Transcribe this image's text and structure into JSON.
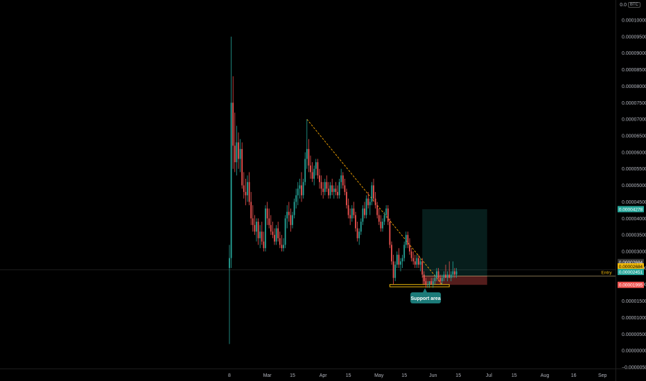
{
  "header": {
    "price_prefix": "0.0",
    "currency": "BTC"
  },
  "colors": {
    "background": "#000000",
    "up": "#26a69a",
    "down": "#ef5350",
    "trendline": "#f7a600",
    "support_box": "#f0b90b",
    "target_zone": "rgba(38,166,154,0.18)",
    "stop_zone": "rgba(239,83,80,0.35)",
    "label_bg": "#1b7a78"
  },
  "chart_data": {
    "type": "candlestick",
    "title": "",
    "xlabel": "",
    "ylabel": "",
    "ylim": [
      -5e-07,
      1.08e-05
    ],
    "y_ticks": [
      "0.00010000",
      "0.00009500",
      "0.00009000",
      "0.00008500",
      "0.00008000",
      "0.00007500",
      "0.00007000",
      "0.00006500",
      "0.00006000",
      "0.00005500",
      "0.00005000",
      "0.00004500",
      "0.00004000",
      "0.00003500",
      "0.00003000",
      "0.00002500",
      "0.00002000",
      "0.00001500",
      "0.00001000",
      "0.00000500",
      "0.00000000",
      "−0.00000500"
    ],
    "y_tick_values": [
      1e-05,
      9.5e-06,
      9e-06,
      8.5e-06,
      8e-06,
      7.5e-06,
      7e-06,
      6.5e-06,
      6e-06,
      5.5e-06,
      5e-06,
      4.5e-06,
      4e-06,
      3.5e-06,
      3e-06,
      2.5e-06,
      2e-06,
      1.5e-06,
      1e-06,
      5e-07,
      0.0,
      -5e-07
    ],
    "x_ticks": [
      "8",
      "Mar",
      "15",
      "Apr",
      "15",
      "May",
      "15",
      "Jun",
      "15",
      "Jul",
      "15",
      "Aug",
      "16",
      "Sep"
    ],
    "x_tick_days": [
      0,
      21,
      35,
      52,
      66,
      83,
      97,
      113,
      127,
      144,
      158,
      175,
      191,
      207
    ],
    "candles": [
      {
        "day": 0,
        "o": 2.5e-06,
        "h": 3.2e-06,
        "l": 2e-07,
        "c": 2.8e-06
      },
      {
        "day": 1,
        "o": 2.8e-06,
        "h": 9.5e-06,
        "l": 2.5e-06,
        "c": 7.5e-06
      },
      {
        "day": 2,
        "o": 7.5e-06,
        "h": 8.3e-06,
        "l": 5.5e-06,
        "c": 6.2e-06
      },
      {
        "day": 3,
        "o": 6.2e-06,
        "h": 7.2e-06,
        "l": 5.4e-06,
        "c": 5.7e-06
      },
      {
        "day": 4,
        "o": 5.7e-06,
        "h": 6.8e-06,
        "l": 5.3e-06,
        "c": 6.3e-06
      },
      {
        "day": 5,
        "o": 6.3e-06,
        "h": 6.6e-06,
        "l": 5.5e-06,
        "c": 5.8e-06
      },
      {
        "day": 6,
        "o": 5.8e-06,
        "h": 6.4e-06,
        "l": 5.4e-06,
        "c": 6.1e-06
      },
      {
        "day": 7,
        "o": 6.1e-06,
        "h": 6.3e-06,
        "l": 4.9e-06,
        "c": 5e-06
      },
      {
        "day": 8,
        "o": 5e-06,
        "h": 5.4e-06,
        "l": 4.6e-06,
        "c": 4.8e-06
      },
      {
        "day": 9,
        "o": 4.8e-06,
        "h": 5.2e-06,
        "l": 4.4e-06,
        "c": 4.7e-06
      },
      {
        "day": 10,
        "o": 4.7e-06,
        "h": 5.3e-06,
        "l": 4.5e-06,
        "c": 5.1e-06
      },
      {
        "day": 11,
        "o": 5.1e-06,
        "h": 5.4e-06,
        "l": 4.4e-06,
        "c": 4.5e-06
      },
      {
        "day": 12,
        "o": 4.5e-06,
        "h": 4.8e-06,
        "l": 3.8e-06,
        "c": 4e-06
      },
      {
        "day": 13,
        "o": 4e-06,
        "h": 4.4e-06,
        "l": 3.6e-06,
        "c": 3.8e-06
      },
      {
        "day": 14,
        "o": 3.8e-06,
        "h": 4.1e-06,
        "l": 3.5e-06,
        "c": 3.6e-06
      },
      {
        "day": 15,
        "o": 3.6e-06,
        "h": 4e-06,
        "l": 3.3e-06,
        "c": 3.9e-06
      },
      {
        "day": 16,
        "o": 3.9e-06,
        "h": 4e-06,
        "l": 3.2e-06,
        "c": 3.4e-06
      },
      {
        "day": 17,
        "o": 3.4e-06,
        "h": 3.8e-06,
        "l": 3.1e-06,
        "c": 3.6e-06
      },
      {
        "day": 18,
        "o": 3.6e-06,
        "h": 3.9e-06,
        "l": 3.2e-06,
        "c": 3.3e-06
      },
      {
        "day": 19,
        "o": 3.3e-06,
        "h": 3.6e-06,
        "l": 3e-06,
        "c": 3.1e-06
      },
      {
        "day": 20,
        "o": 3.1e-06,
        "h": 4.4e-06,
        "l": 3e-06,
        "c": 4.3e-06
      },
      {
        "day": 21,
        "o": 4.3e-06,
        "h": 4.5e-06,
        "l": 3.8e-06,
        "c": 4e-06
      },
      {
        "day": 22,
        "o": 4e-06,
        "h": 4.3e-06,
        "l": 3.7e-06,
        "c": 3.8e-06
      },
      {
        "day": 23,
        "o": 3.8e-06,
        "h": 4.1e-06,
        "l": 3.5e-06,
        "c": 3.6e-06
      },
      {
        "day": 24,
        "o": 3.6e-06,
        "h": 3.9e-06,
        "l": 3.4e-06,
        "c": 3.5e-06
      },
      {
        "day": 25,
        "o": 3.5e-06,
        "h": 3.7e-06,
        "l": 3.2e-06,
        "c": 3.3e-06
      },
      {
        "day": 26,
        "o": 3.3e-06,
        "h": 3.8e-06,
        "l": 3.2e-06,
        "c": 3.7e-06
      },
      {
        "day": 27,
        "o": 3.7e-06,
        "h": 3.9e-06,
        "l": 3.3e-06,
        "c": 3.4e-06
      },
      {
        "day": 28,
        "o": 3.4e-06,
        "h": 3.6e-06,
        "l": 3.1e-06,
        "c": 3.2e-06
      },
      {
        "day": 29,
        "o": 3.2e-06,
        "h": 3.5e-06,
        "l": 3e-06,
        "c": 3.1e-06
      },
      {
        "day": 30,
        "o": 3.1e-06,
        "h": 3.4e-06,
        "l": 3e-06,
        "c": 3.2e-06
      },
      {
        "day": 31,
        "o": 3.2e-06,
        "h": 4.1e-06,
        "l": 3.1e-06,
        "c": 4e-06
      },
      {
        "day": 32,
        "o": 4e-06,
        "h": 4.4e-06,
        "l": 3.7e-06,
        "c": 4.2e-06
      },
      {
        "day": 33,
        "o": 4.2e-06,
        "h": 4.5e-06,
        "l": 3.9e-06,
        "c": 4.1e-06
      },
      {
        "day": 34,
        "o": 4.1e-06,
        "h": 4.3e-06,
        "l": 3.6e-06,
        "c": 3.8e-06
      },
      {
        "day": 35,
        "o": 3.8e-06,
        "h": 4.2e-06,
        "l": 3.7e-06,
        "c": 4.1e-06
      },
      {
        "day": 36,
        "o": 4.1e-06,
        "h": 4.6e-06,
        "l": 4e-06,
        "c": 4.5e-06
      },
      {
        "day": 37,
        "o": 4.5e-06,
        "h": 4.9e-06,
        "l": 4.3e-06,
        "c": 4.7e-06
      },
      {
        "day": 38,
        "o": 4.7e-06,
        "h": 5.1e-06,
        "l": 4.4e-06,
        "c": 4.9e-06
      },
      {
        "day": 39,
        "o": 4.9e-06,
        "h": 5.2e-06,
        "l": 4.6e-06,
        "c": 5e-06
      },
      {
        "day": 40,
        "o": 5e-06,
        "h": 5.4e-06,
        "l": 4.5e-06,
        "c": 4.7e-06
      },
      {
        "day": 41,
        "o": 4.7e-06,
        "h": 5.2e-06,
        "l": 4.6e-06,
        "c": 5.1e-06
      },
      {
        "day": 42,
        "o": 5.1e-06,
        "h": 6e-06,
        "l": 5e-06,
        "c": 5.8e-06
      },
      {
        "day": 43,
        "o": 5.8e-06,
        "h": 7e-06,
        "l": 5.5e-06,
        "c": 6.1e-06
      },
      {
        "day": 44,
        "o": 6.1e-06,
        "h": 6.4e-06,
        "l": 5.4e-06,
        "c": 5.6e-06
      },
      {
        "day": 45,
        "o": 5.6e-06,
        "h": 5.9e-06,
        "l": 5.2e-06,
        "c": 5.4e-06
      },
      {
        "day": 46,
        "o": 5.4e-06,
        "h": 5.7e-06,
        "l": 5.1e-06,
        "c": 5.2e-06
      },
      {
        "day": 47,
        "o": 5.2e-06,
        "h": 5.6e-06,
        "l": 5e-06,
        "c": 5.5e-06
      },
      {
        "day": 48,
        "o": 5.5e-06,
        "h": 5.8e-06,
        "l": 5.3e-06,
        "c": 5.7e-06
      },
      {
        "day": 49,
        "o": 5.7e-06,
        "h": 5.8e-06,
        "l": 5.2e-06,
        "c": 5.3e-06
      },
      {
        "day": 50,
        "o": 5.3e-06,
        "h": 5.5e-06,
        "l": 4.9e-06,
        "c": 5.1e-06
      },
      {
        "day": 51,
        "o": 5.1e-06,
        "h": 5.3e-06,
        "l": 4.7e-06,
        "c": 4.9e-06
      },
      {
        "day": 52,
        "o": 4.9e-06,
        "h": 5.1e-06,
        "l": 4.6e-06,
        "c": 4.8e-06
      },
      {
        "day": 53,
        "o": 4.8e-06,
        "h": 5.2e-06,
        "l": 4.7e-06,
        "c": 5.1e-06
      },
      {
        "day": 54,
        "o": 5.1e-06,
        "h": 5.3e-06,
        "l": 4.8e-06,
        "c": 4.9e-06
      },
      {
        "day": 55,
        "o": 4.9e-06,
        "h": 5.1e-06,
        "l": 4.6e-06,
        "c": 4.7e-06
      },
      {
        "day": 56,
        "o": 4.7e-06,
        "h": 5.1e-06,
        "l": 4.6e-06,
        "c": 5e-06
      },
      {
        "day": 57,
        "o": 5e-06,
        "h": 5.2e-06,
        "l": 4.7e-06,
        "c": 4.8e-06
      },
      {
        "day": 58,
        "o": 4.8e-06,
        "h": 5e-06,
        "l": 4.6e-06,
        "c": 4.9e-06
      },
      {
        "day": 59,
        "o": 4.9e-06,
        "h": 5.1e-06,
        "l": 4.7e-06,
        "c": 4.8e-06
      },
      {
        "day": 60,
        "o": 4.8e-06,
        "h": 5e-06,
        "l": 4.6e-06,
        "c": 4.7e-06
      },
      {
        "day": 61,
        "o": 4.7e-06,
        "h": 5.2e-06,
        "l": 4.6e-06,
        "c": 5.1e-06
      },
      {
        "day": 62,
        "o": 5.1e-06,
        "h": 5.5e-06,
        "l": 4.9e-06,
        "c": 5.3e-06
      },
      {
        "day": 63,
        "o": 5.3e-06,
        "h": 5.4e-06,
        "l": 4.9e-06,
        "c": 5e-06
      },
      {
        "day": 64,
        "o": 5e-06,
        "h": 5.2e-06,
        "l": 4.7e-06,
        "c": 4.8e-06
      },
      {
        "day": 65,
        "o": 4.8e-06,
        "h": 4.9e-06,
        "l": 4.3e-06,
        "c": 4.4e-06
      },
      {
        "day": 66,
        "o": 4.4e-06,
        "h": 4.6e-06,
        "l": 4e-06,
        "c": 4.1e-06
      },
      {
        "day": 67,
        "o": 4.1e-06,
        "h": 4.3e-06,
        "l": 3.8e-06,
        "c": 4e-06
      },
      {
        "day": 68,
        "o": 4e-06,
        "h": 4.4e-06,
        "l": 3.9e-06,
        "c": 4.3e-06
      },
      {
        "day": 69,
        "o": 4.3e-06,
        "h": 4.5e-06,
        "l": 4e-06,
        "c": 4.1e-06
      },
      {
        "day": 70,
        "o": 4.1e-06,
        "h": 4.2e-06,
        "l": 3.6e-06,
        "c": 3.7e-06
      },
      {
        "day": 71,
        "o": 3.7e-06,
        "h": 3.9e-06,
        "l": 3.3e-06,
        "c": 3.4e-06
      },
      {
        "day": 72,
        "o": 3.4e-06,
        "h": 3.7e-06,
        "l": 3.2e-06,
        "c": 3.6e-06
      },
      {
        "day": 73,
        "o": 3.6e-06,
        "h": 4e-06,
        "l": 3.5e-06,
        "c": 3.9e-06
      },
      {
        "day": 74,
        "o": 3.9e-06,
        "h": 4.4e-06,
        "l": 3.8e-06,
        "c": 4.3e-06
      },
      {
        "day": 75,
        "o": 4.3e-06,
        "h": 4.5e-06,
        "l": 4e-06,
        "c": 4.1e-06
      },
      {
        "day": 76,
        "o": 4.1e-06,
        "h": 4.7e-06,
        "l": 4e-06,
        "c": 4.6e-06
      },
      {
        "day": 77,
        "o": 4.6e-06,
        "h": 4.8e-06,
        "l": 4.3e-06,
        "c": 4.4e-06
      },
      {
        "day": 78,
        "o": 4.4e-06,
        "h": 4.6e-06,
        "l": 4.1e-06,
        "c": 4.5e-06
      },
      {
        "day": 79,
        "o": 4.5e-06,
        "h": 5.1e-06,
        "l": 4.4e-06,
        "c": 5e-06
      },
      {
        "day": 80,
        "o": 5e-06,
        "h": 5.2e-06,
        "l": 4.5e-06,
        "c": 4.6e-06
      },
      {
        "day": 81,
        "o": 4.6e-06,
        "h": 4.8e-06,
        "l": 4.3e-06,
        "c": 4.4e-06
      },
      {
        "day": 82,
        "o": 4.4e-06,
        "h": 4.5e-06,
        "l": 4e-06,
        "c": 4.1e-06
      },
      {
        "day": 83,
        "o": 4.1e-06,
        "h": 4.3e-06,
        "l": 3.8e-06,
        "c": 3.9e-06
      },
      {
        "day": 84,
        "o": 3.9e-06,
        "h": 4.1e-06,
        "l": 3.6e-06,
        "c": 3.7e-06
      },
      {
        "day": 85,
        "o": 3.7e-06,
        "h": 4e-06,
        "l": 3.6e-06,
        "c": 3.9e-06
      },
      {
        "day": 86,
        "o": 3.9e-06,
        "h": 4.2e-06,
        "l": 3.8e-06,
        "c": 4.1e-06
      },
      {
        "day": 87,
        "o": 4.1e-06,
        "h": 4.4e-06,
        "l": 4e-06,
        "c": 4.3e-06
      },
      {
        "day": 88,
        "o": 4.3e-06,
        "h": 4.4e-06,
        "l": 3.8e-06,
        "c": 3.9e-06
      },
      {
        "day": 89,
        "o": 3.9e-06,
        "h": 4e-06,
        "l": 3.1e-06,
        "c": 3.2e-06
      },
      {
        "day": 90,
        "o": 3.2e-06,
        "h": 3.3e-06,
        "l": 2.6e-06,
        "c": 2.7e-06
      },
      {
        "day": 91,
        "o": 2.7e-06,
        "h": 2.9e-06,
        "l": 2e-06,
        "c": 2.2e-06
      },
      {
        "day": 92,
        "o": 2.2e-06,
        "h": 2.7e-06,
        "l": 2.1e-06,
        "c": 2.6e-06
      },
      {
        "day": 93,
        "o": 2.6e-06,
        "h": 3e-06,
        "l": 2.5e-06,
        "c": 2.9e-06
      },
      {
        "day": 94,
        "o": 2.9e-06,
        "h": 3.1e-06,
        "l": 2.5e-06,
        "c": 2.6e-06
      },
      {
        "day": 95,
        "o": 2.6e-06,
        "h": 2.8e-06,
        "l": 2.4e-06,
        "c": 2.7e-06
      },
      {
        "day": 96,
        "o": 2.7e-06,
        "h": 2.9e-06,
        "l": 2.5e-06,
        "c": 2.8e-06
      },
      {
        "day": 97,
        "o": 2.8e-06,
        "h": 3.3e-06,
        "l": 2.7e-06,
        "c": 3.2e-06
      },
      {
        "day": 98,
        "o": 3.2e-06,
        "h": 3.6e-06,
        "l": 3.1e-06,
        "c": 3.5e-06
      },
      {
        "day": 99,
        "o": 3.5e-06,
        "h": 3.6e-06,
        "l": 3.1e-06,
        "c": 3.2e-06
      },
      {
        "day": 100,
        "o": 3.2e-06,
        "h": 3.4e-06,
        "l": 2.9e-06,
        "c": 3e-06
      },
      {
        "day": 101,
        "o": 3e-06,
        "h": 3.1e-06,
        "l": 2.7e-06,
        "c": 2.8e-06
      },
      {
        "day": 102,
        "o": 2.8e-06,
        "h": 3e-06,
        "l": 2.6e-06,
        "c": 2.7e-06
      },
      {
        "day": 103,
        "o": 2.7e-06,
        "h": 2.9e-06,
        "l": 2.5e-06,
        "c": 2.6e-06
      },
      {
        "day": 104,
        "o": 2.6e-06,
        "h": 2.9e-06,
        "l": 2.5e-06,
        "c": 2.8e-06
      },
      {
        "day": 105,
        "o": 2.8e-06,
        "h": 2.9e-06,
        "l": 2.5e-06,
        "c": 2.6e-06
      },
      {
        "day": 106,
        "o": 2.6e-06,
        "h": 2.8e-06,
        "l": 2.4e-06,
        "c": 2.7e-06
      },
      {
        "day": 107,
        "o": 2.7e-06,
        "h": 2.8e-06,
        "l": 2.2e-06,
        "c": 2.3e-06
      },
      {
        "day": 108,
        "o": 2.3e-06,
        "h": 2.4e-06,
        "l": 2e-06,
        "c": 2.1e-06
      },
      {
        "day": 109,
        "o": 2.1e-06,
        "h": 2.2e-06,
        "l": 1.9e-06,
        "c": 2e-06
      },
      {
        "day": 110,
        "o": 2e-06,
        "h": 2.1e-06,
        "l": 1.9e-06,
        "c": 2e-06
      },
      {
        "day": 111,
        "o": 2e-06,
        "h": 2.1e-06,
        "l": 1.9e-06,
        "c": 2.1e-06
      },
      {
        "day": 112,
        "o": 2.1e-06,
        "h": 2.2e-06,
        "l": 2e-06,
        "c": 2e-06
      },
      {
        "day": 113,
        "o": 2e-06,
        "h": 2.2e-06,
        "l": 1.9e-06,
        "c": 2.1e-06
      },
      {
        "day": 114,
        "o": 2.1e-06,
        "h": 2.3e-06,
        "l": 2e-06,
        "c": 2.2e-06
      },
      {
        "day": 115,
        "o": 2.2e-06,
        "h": 2.5e-06,
        "l": 2.1e-06,
        "c": 2.4e-06
      },
      {
        "day": 116,
        "o": 2.4e-06,
        "h": 2.5e-06,
        "l": 2.1e-06,
        "c": 2.2e-06
      },
      {
        "day": 117,
        "o": 2.2e-06,
        "h": 2.3e-06,
        "l": 2e-06,
        "c": 2.1e-06
      },
      {
        "day": 118,
        "o": 2.1e-06,
        "h": 2.3e-06,
        "l": 2e-06,
        "c": 2.2e-06
      },
      {
        "day": 119,
        "o": 2.2e-06,
        "h": 2.4e-06,
        "l": 2.1e-06,
        "c": 2.3e-06
      },
      {
        "day": 120,
        "o": 2.3e-06,
        "h": 2.6e-06,
        "l": 2.2e-06,
        "c": 2.2e-06
      },
      {
        "day": 121,
        "o": 2.2e-06,
        "h": 2.4e-06,
        "l": 2.1e-06,
        "c": 2.3e-06
      },
      {
        "day": 122,
        "o": 2.3e-06,
        "h": 2.7e-06,
        "l": 2.2e-06,
        "c": 2.2e-06
      },
      {
        "day": 123,
        "o": 2.2e-06,
        "h": 2.4e-06,
        "l": 2.1e-06,
        "c": 2.3e-06
      },
      {
        "day": 124,
        "o": 2.3e-06,
        "h": 2.7e-06,
        "l": 2.2e-06,
        "c": 2.4e-06
      },
      {
        "day": 125,
        "o": 2.4e-06,
        "h": 2.5e-06,
        "l": 2.2e-06,
        "c": 2.3e-06
      },
      {
        "day": 126,
        "o": 2.3e-06,
        "h": 2.5e-06,
        "l": 2.2e-06,
        "c": 2.4e-06
      }
    ],
    "annotations": {
      "trendline": {
        "from": {
          "day": 43,
          "price": 7e-06
        },
        "to": {
          "day": 118,
          "price": 2e-06
        }
      },
      "support_area": {
        "day_start": 89,
        "day_end": 122,
        "price_top": 2e-06,
        "price_bottom": 1.93e-06,
        "label": "Support area"
      },
      "target_zone": {
        "day_start": 107,
        "day_end": 143,
        "price_top": 4.28e-06,
        "price_bottom": 2.26e-06
      },
      "stop_zone": {
        "day_start": 107,
        "day_end": 143,
        "price_top": 2.26e-06,
        "price_bottom": 1.99e-06
      },
      "entry_label": "Entry",
      "price_labels": [
        {
          "text": "0.00004278",
          "price": 4.28e-06,
          "color": "#26a69a"
        },
        {
          "text": "0.00002684",
          "price": 2.68e-06,
          "color": "#3a3a3a"
        },
        {
          "text": "0.00002684",
          "price": 2.55e-06,
          "color": "#f0b90b"
        },
        {
          "text": "0.00002451",
          "price": 2.38e-06,
          "color": "#26a69a"
        },
        {
          "text": "0.00001995",
          "price": 1.99e-06,
          "color": "#ef5350"
        }
      ],
      "crosshair_price": 2.45e-06
    }
  }
}
